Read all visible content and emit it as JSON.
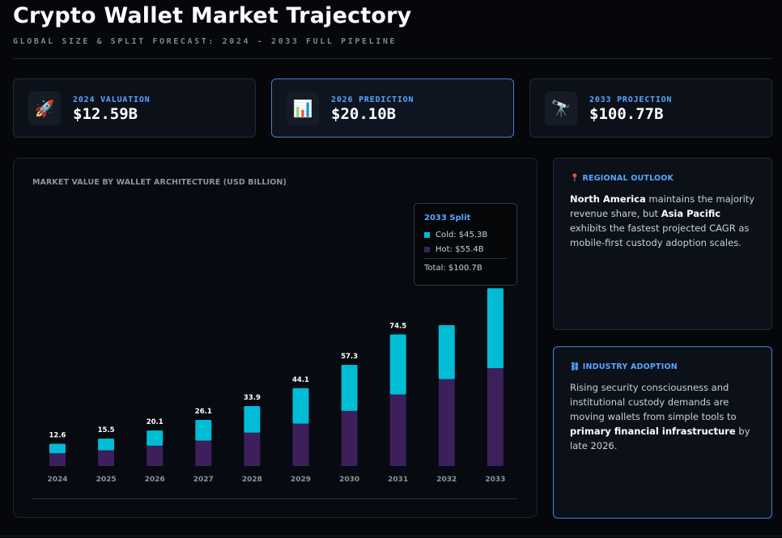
{
  "header": {
    "title": "Crypto Wallet Market Trajectory",
    "subtitle": "GLOBAL SIZE & SPLIT FORECAST: 2024 - 2033 FULL PIPELINE"
  },
  "kpis": [
    {
      "icon": "rocket-icon",
      "glyph": "🚀",
      "label": "2024 VALUATION",
      "value": "$12.59B"
    },
    {
      "icon": "bar-chart-icon",
      "glyph": "📊",
      "label": "2026 PREDICTION",
      "value": "$20.10B"
    },
    {
      "icon": "telescope-icon",
      "glyph": "🔭",
      "label": "2033 PROJECTION",
      "value": "$100.77B"
    }
  ],
  "chart_data": {
    "type": "bar",
    "stacked": true,
    "title": "MARKET VALUE BY WALLET ARCHITECTURE (USD BILLION)",
    "categories": [
      "2024",
      "2025",
      "2026",
      "2027",
      "2028",
      "2029",
      "2030",
      "2031",
      "2032",
      "2033"
    ],
    "series": [
      {
        "name": "Hot",
        "color": "#3d1f5c",
        "values": [
          7.2,
          8.9,
          11.5,
          14.4,
          18.9,
          24.0,
          31.2,
          40.5,
          49.2,
          55.4
        ]
      },
      {
        "name": "Cold",
        "color": "#00bcd4",
        "values": [
          5.4,
          6.6,
          8.6,
          11.7,
          15.0,
          20.1,
          26.1,
          34.0,
          30.6,
          45.3
        ]
      }
    ],
    "totals_labels": [
      "12.6",
      "15.5",
      "20.1",
      "26.1",
      "33.9",
      "44.1",
      "57.3",
      "74.5",
      "",
      ""
    ],
    "ylim": [
      0,
      100.8
    ],
    "grid": false,
    "legend": "none"
  },
  "tooltip": {
    "title": "2033 Split",
    "cold": "Cold: $45.3B",
    "hot": "Hot: $55.4B",
    "total": "Total: $100.7B",
    "cold_color": "#00bcd4",
    "hot_color": "#3d1f5c"
  },
  "regional": {
    "icon": "pin-icon",
    "heading": "📍 REGIONAL OUTLOOK",
    "b1": "North America",
    "t1": " maintains the majority revenue share, but ",
    "b2": "Asia Pacific",
    "t2": " exhibits the fastest projected CAGR as mobile-first custody adoption scales."
  },
  "adoption": {
    "icon": "chain-icon",
    "heading": "⛓ INDUSTRY ADOPTION",
    "t1": "Rising security consciousness and institutional custody demands are moving wallets from simple tools to ",
    "b1": "primary financial infrastructure",
    "t2": " by late 2026."
  }
}
